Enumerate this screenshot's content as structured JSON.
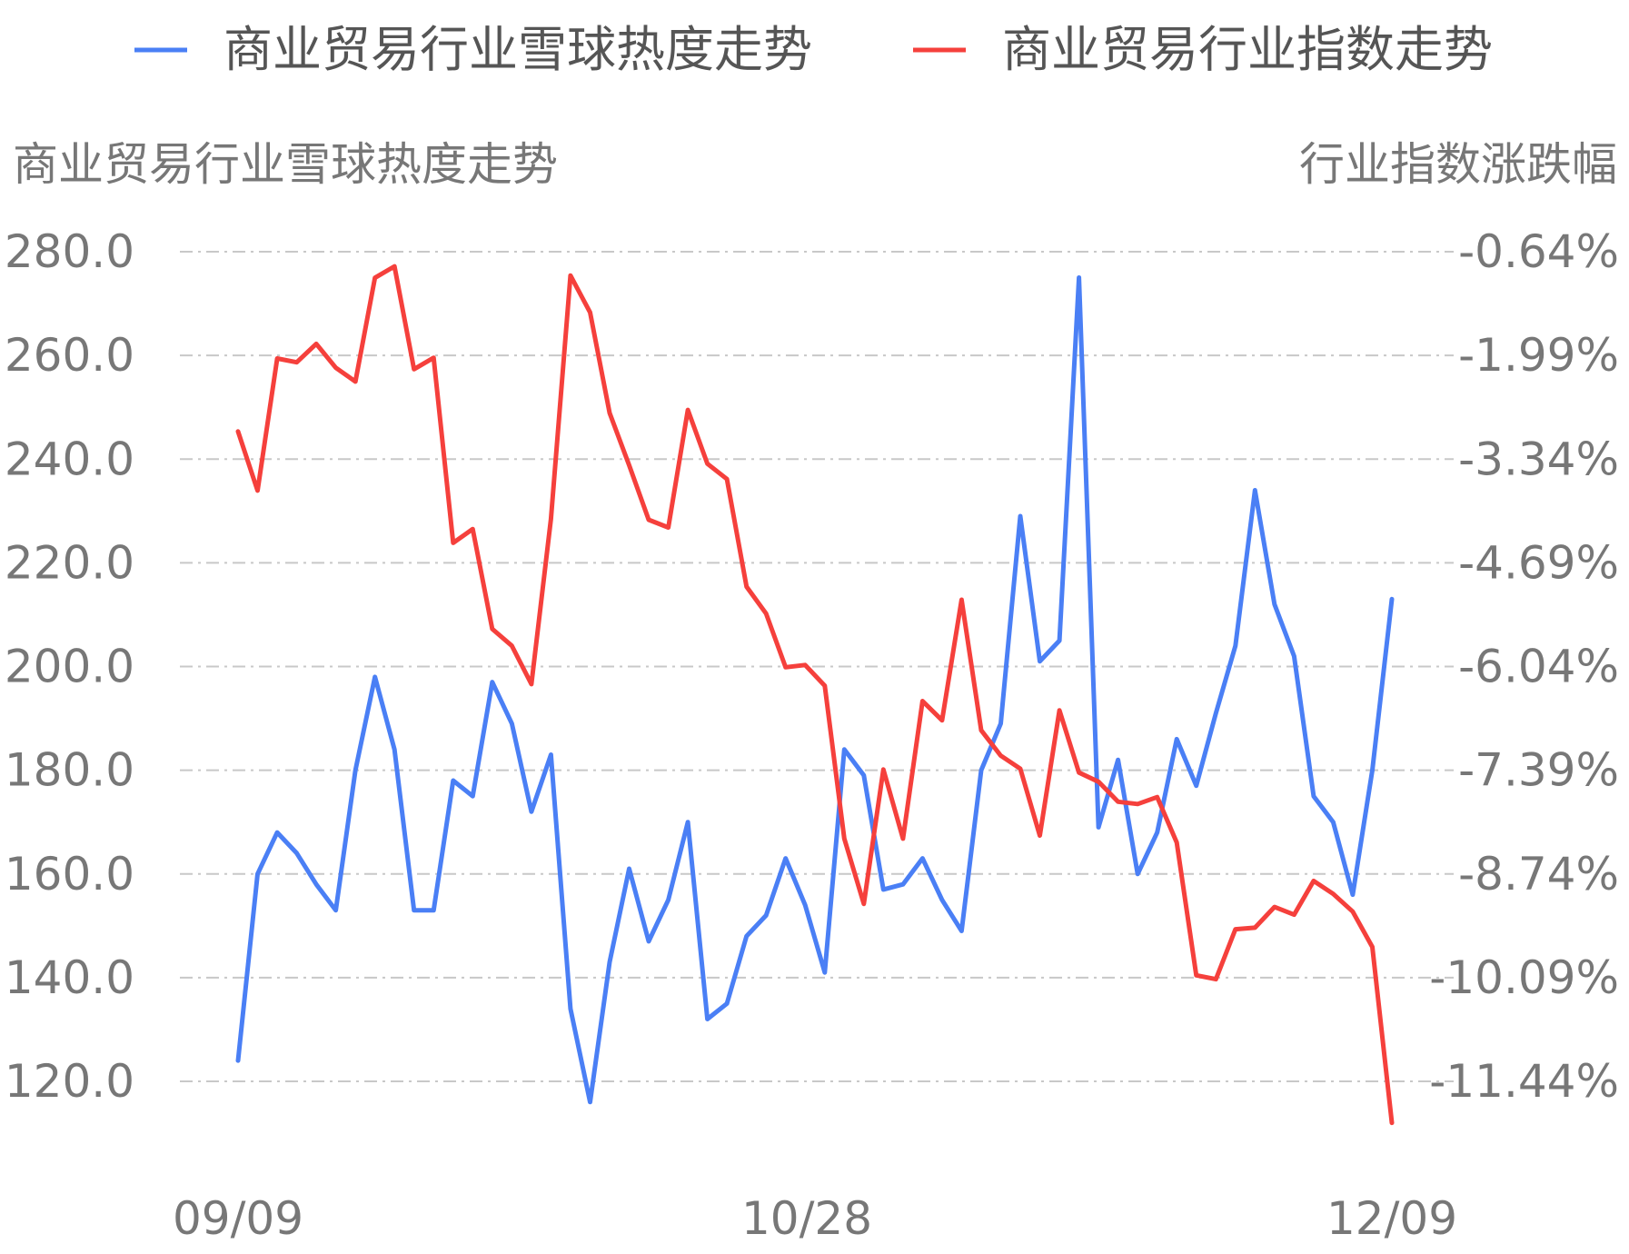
{
  "chart_data": {
    "type": "line",
    "legend": {
      "position": "top",
      "items": [
        {
          "name": "商业贸易行业雪球热度走势",
          "color": "#4a7ff5"
        },
        {
          "name": "商业贸易行业指数走势",
          "color": "#f5403c"
        }
      ]
    },
    "y_left": {
      "title": "商业贸易行业雪球热度走势",
      "ticks": [
        "120.0",
        "140.0",
        "160.0",
        "180.0",
        "200.0",
        "220.0",
        "240.0",
        "260.0",
        "280.0"
      ],
      "ylim": [
        112,
        283
      ]
    },
    "y_right": {
      "title": "行业指数涨跌幅",
      "ticks": [
        "-11.44%",
        "-10.09%",
        "-8.74%",
        "-7.39%",
        "-6.04%",
        "-4.69%",
        "-3.34%",
        "-1.99%",
        "-0.64%"
      ],
      "ylim": [
        -11.98,
        -0.44
      ]
    },
    "x_labels": [
      "09/09",
      "10/28",
      "12/09"
    ],
    "grid": true,
    "series": [
      {
        "name": "商业贸易行业雪球热度走势",
        "color": "#4a7ff5",
        "axis": "left",
        "values": [
          124,
          160,
          168,
          164,
          158,
          153,
          180,
          198,
          184,
          153,
          153,
          178,
          175,
          197,
          189,
          172,
          183,
          134,
          116,
          143,
          161,
          147,
          155,
          170,
          132,
          135,
          148,
          152,
          163,
          154,
          141,
          184,
          179,
          157,
          158,
          163,
          155,
          149,
          180,
          189,
          229,
          201,
          205,
          275,
          169,
          182,
          160,
          168,
          186,
          177,
          191,
          204,
          234,
          212,
          202,
          175,
          170,
          156,
          180,
          213
        ]
      },
      {
        "name": "商业贸易行业指数走势",
        "color": "#f5403c",
        "axis": "right",
        "values": [
          -2.98,
          -3.75,
          -2.03,
          -2.08,
          -1.84,
          -2.15,
          -2.33,
          -0.98,
          -0.83,
          -2.17,
          -2.02,
          -4.43,
          -4.25,
          -5.55,
          -5.77,
          -6.27,
          -4.12,
          -0.95,
          -1.43,
          -2.74,
          -3.42,
          -4.13,
          -4.23,
          -2.7,
          -3.4,
          -3.6,
          -5.0,
          -5.35,
          -6.05,
          -6.02,
          -6.29,
          -8.28,
          -9.13,
          -7.38,
          -8.28,
          -6.49,
          -6.74,
          -5.17,
          -6.87,
          -7.2,
          -7.37,
          -8.24,
          -6.61,
          -7.42,
          -7.54,
          -7.8,
          -7.83,
          -7.74,
          -8.33,
          -10.06,
          -10.11,
          -9.46,
          -9.44,
          -9.17,
          -9.27,
          -8.83,
          -9.0,
          -9.23,
          -9.69,
          -11.98
        ]
      }
    ]
  }
}
